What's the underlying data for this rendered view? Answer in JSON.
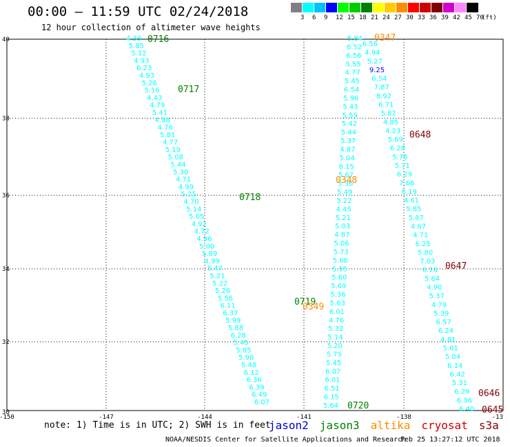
{
  "header": {
    "title": "00:00 – 11:59 UTC 02/24/2018",
    "subtitle": "12 hour collection of altimeter wave heights"
  },
  "legend": {
    "colors": [
      "#808080",
      "#00ffff",
      "#00c0ff",
      "#0000ff",
      "#00ff00",
      "#00cc00",
      "#008000",
      "#ffff00",
      "#ffcc00",
      "#ff8c00",
      "#ff0000",
      "#cc0000",
      "#800000",
      "#d000d0",
      "#ff88ff",
      "#000000"
    ],
    "labels": [
      "3",
      "6",
      "9",
      "12",
      "15",
      "18",
      "21",
      "24",
      "27",
      "30",
      "33",
      "36",
      "39",
      "42",
      "45",
      "70",
      "(ft)"
    ]
  },
  "axes": {
    "y_labels": [
      "40",
      "38",
      "36",
      "34",
      "32",
      "30"
    ],
    "x_labels": [
      "-150",
      "-147",
      "-144",
      "-141",
      "-138",
      "-13"
    ]
  },
  "tracks": [
    {
      "name": "track-0716",
      "color": "#00ffff",
      "values": [
        "4.39",
        "5.85",
        "5.12",
        "4.93",
        "6.23",
        "4.93",
        "5.26",
        "5.16",
        "4.43",
        "4.79",
        "5.41",
        "4.88",
        "4.76",
        "5.81",
        "4.77",
        "5.19",
        "5.08",
        "5.44",
        "5.30",
        "4.71",
        "4.99",
        "5.25",
        "4.70",
        "5.14",
        "5.05",
        "4.92",
        "4.72",
        "4.96",
        "5.00",
        "5.89",
        "4.99",
        "5.47",
        "5.21",
        "5.22",
        "5.26",
        "5.56",
        "6.11",
        "6.37",
        "5.99",
        "5.88",
        "6.28",
        "5.45",
        "5.85",
        "5.96",
        "5.48",
        "6.12",
        "6.36",
        "6.39",
        "6.49",
        "6.07"
      ]
    },
    {
      "name": "track-0720",
      "color": "#00ffff",
      "values": [
        "5.84",
        "6.52",
        "6.56",
        "5.55",
        "4.77",
        "5.45",
        "6.54",
        "5.96",
        "5.43",
        "5.59",
        "5.42",
        "5.44",
        "5.37",
        "4.87",
        "5.04",
        "6.15",
        "5.67",
        "5.36",
        "5.49",
        "5.22",
        "4.45",
        "5.21",
        "5.03",
        "4.87",
        "5.06",
        "5.73",
        "5.66",
        "5.55",
        "5.60",
        "5.69",
        "5.36",
        "5.63",
        "6.01",
        "4.76",
        "5.32",
        "5.14",
        "5.20",
        "5.75",
        "5.45",
        "6.07",
        "6.01",
        "6.51",
        "6.15",
        "5.64"
      ]
    },
    {
      "name": "track-0645",
      "color": "#00ffff",
      "values": [
        "6.56",
        "4.94",
        "5.27",
        "9.25",
        "6.54",
        "7.87",
        "8.92",
        "6.71",
        "5.82",
        "4.85",
        "4.23",
        "5.69",
        "6.28",
        "5.76",
        "5.71",
        "6.29",
        "7.66",
        "6.19",
        "4.61",
        "5.85",
        "5.87",
        "4.67",
        "4.71",
        "6.25",
        "5.80",
        "7.03",
        "6.16",
        "5.64",
        "4.90",
        "5.37",
        "4.79",
        "5.39",
        "6.57",
        "6.24",
        "4.81",
        "5.01",
        "5.04",
        "6.14",
        "6.42",
        "5.31",
        "6.29",
        "6.36",
        "6.40"
      ]
    }
  ],
  "time_labels": [
    {
      "text": "0716",
      "color": "#008000"
    },
    {
      "text": "0717",
      "color": "#008000"
    },
    {
      "text": "0718",
      "color": "#008000"
    },
    {
      "text": "0719",
      "color": "#008000"
    },
    {
      "text": "0720",
      "color": "#008000"
    },
    {
      "text": "0347",
      "color": "#ff8c00"
    },
    {
      "text": "0348",
      "color": "#ff8c00"
    },
    {
      "text": "0349",
      "color": "#ff8c00"
    },
    {
      "text": "0648",
      "color": "#800000"
    },
    {
      "text": "0647",
      "color": "#800000"
    },
    {
      "text": "0646",
      "color": "#800000"
    },
    {
      "text": "0645",
      "color": "#800000"
    }
  ],
  "notes": "note: 1) Time is in UTC; 2) SWH is in feet",
  "satellites": [
    {
      "name": "jason2",
      "color": "#0000cc"
    },
    {
      "name": "jason3",
      "color": "#008000"
    },
    {
      "name": "altika",
      "color": "#ff8c00"
    },
    {
      "name": "cryosat",
      "color": "#cc0000"
    },
    {
      "name": "s3a",
      "color": "#800000"
    }
  ],
  "footer": "NOAA/NESDIS Center for Satellite Applications and Research",
  "timestamp": "Feb 25 13:27:12 UTC 2018"
}
